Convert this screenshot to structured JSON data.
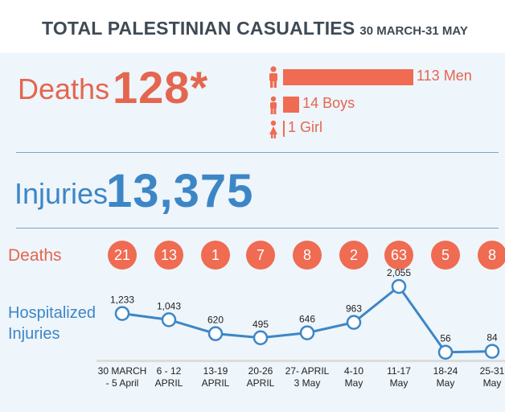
{
  "header": {
    "title": "TOTAL PALESTINIAN CASUALTIES",
    "period": "30 MARCH-31 MAY"
  },
  "totals": {
    "deaths_label": "Deaths",
    "deaths_value": "128*",
    "injuries_label": "Injuries",
    "injuries_value": "13,375"
  },
  "breakdown": [
    {
      "label": "113 Men",
      "value": 113,
      "icon": "man-icon"
    },
    {
      "label": "14 Boys",
      "value": 14,
      "icon": "boy-icon"
    },
    {
      "label": "1 Girl",
      "value": 1,
      "icon": "girl-icon"
    }
  ],
  "weekly": {
    "deaths_row_label": "Deaths",
    "injuries_row_label": "Hospitalized Injuries"
  },
  "colors": {
    "deaths": "#ef6b52",
    "injuries": "#3d86c6"
  },
  "chart_data": {
    "type": "line",
    "categories": [
      [
        "30 MARCH",
        "- 5 April"
      ],
      [
        "6 - 12",
        "APRIL"
      ],
      [
        "13-19",
        "APRIL"
      ],
      [
        "20-26",
        "APRIL"
      ],
      [
        "27- APRIL",
        "3 May"
      ],
      [
        "4-10",
        "May"
      ],
      [
        "11-17",
        "May"
      ],
      [
        "18-24",
        "May"
      ],
      [
        "25-31",
        "May"
      ]
    ],
    "series": [
      {
        "name": "Hospitalized Injuries",
        "values": [
          1233,
          1043,
          620,
          495,
          646,
          963,
          2055,
          56,
          84
        ],
        "labels": [
          "1,233",
          "1,043",
          "620",
          "495",
          "646",
          "963",
          "2,055",
          "56",
          "84"
        ]
      },
      {
        "name": "Deaths",
        "values": [
          21,
          13,
          1,
          7,
          8,
          2,
          63,
          5,
          8
        ]
      }
    ]
  }
}
